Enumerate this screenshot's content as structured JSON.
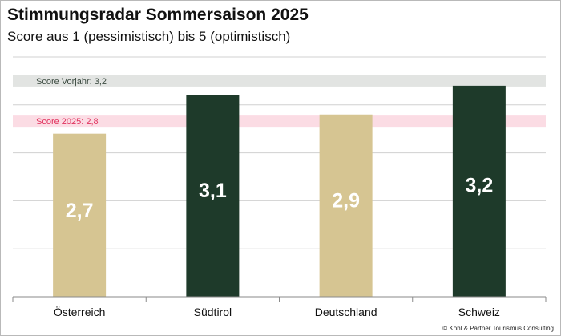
{
  "title": "Stimmungsradar Sommersaison 2025",
  "subtitle": "Score aus 1 (pessimistisch) bis 5 (optimistisch)",
  "copyright": "© Kohl & Partner Tourismus Consulting",
  "colors": {
    "bar_light": "#d6c592",
    "bar_dark": "#1e3a2a",
    "ref_prev_band": "#e2e4e2",
    "ref_prev_text": "#3d4c42",
    "ref_current_band": "#fbdce4",
    "ref_current_text": "#e0305c",
    "grid": "#d0d0d0",
    "axis": "#8a8a8a"
  },
  "chart_data": {
    "type": "bar",
    "title": "Stimmungsradar Sommersaison 2025",
    "subtitle": "Score aus 1 (pessimistisch) bis 5 (optimistisch)",
    "categories": [
      "Österreich",
      "Südtirol",
      "Deutschland",
      "Schweiz"
    ],
    "values": [
      2.7,
      3.1,
      2.9,
      3.2
    ],
    "value_labels": [
      "2,7",
      "3,1",
      "2,9",
      "3,2"
    ],
    "bar_colors": [
      "#d6c592",
      "#1e3a2a",
      "#d6c592",
      "#1e3a2a"
    ],
    "xlabel": "",
    "ylabel": "",
    "ylim": [
      1,
      3.5
    ],
    "gridlines": [
      1.5,
      2,
      2.5,
      3,
      3.5
    ],
    "grid": true,
    "reference_lines": [
      {
        "label": "Score Vorjahr: 3,2",
        "value": 3.25,
        "band_color": "#e2e4e2",
        "text_color": "#3d4c42"
      },
      {
        "label": "Score 2025: 2,8",
        "value": 2.83,
        "band_color": "#fbdce4",
        "text_color": "#e0305c"
      }
    ]
  }
}
